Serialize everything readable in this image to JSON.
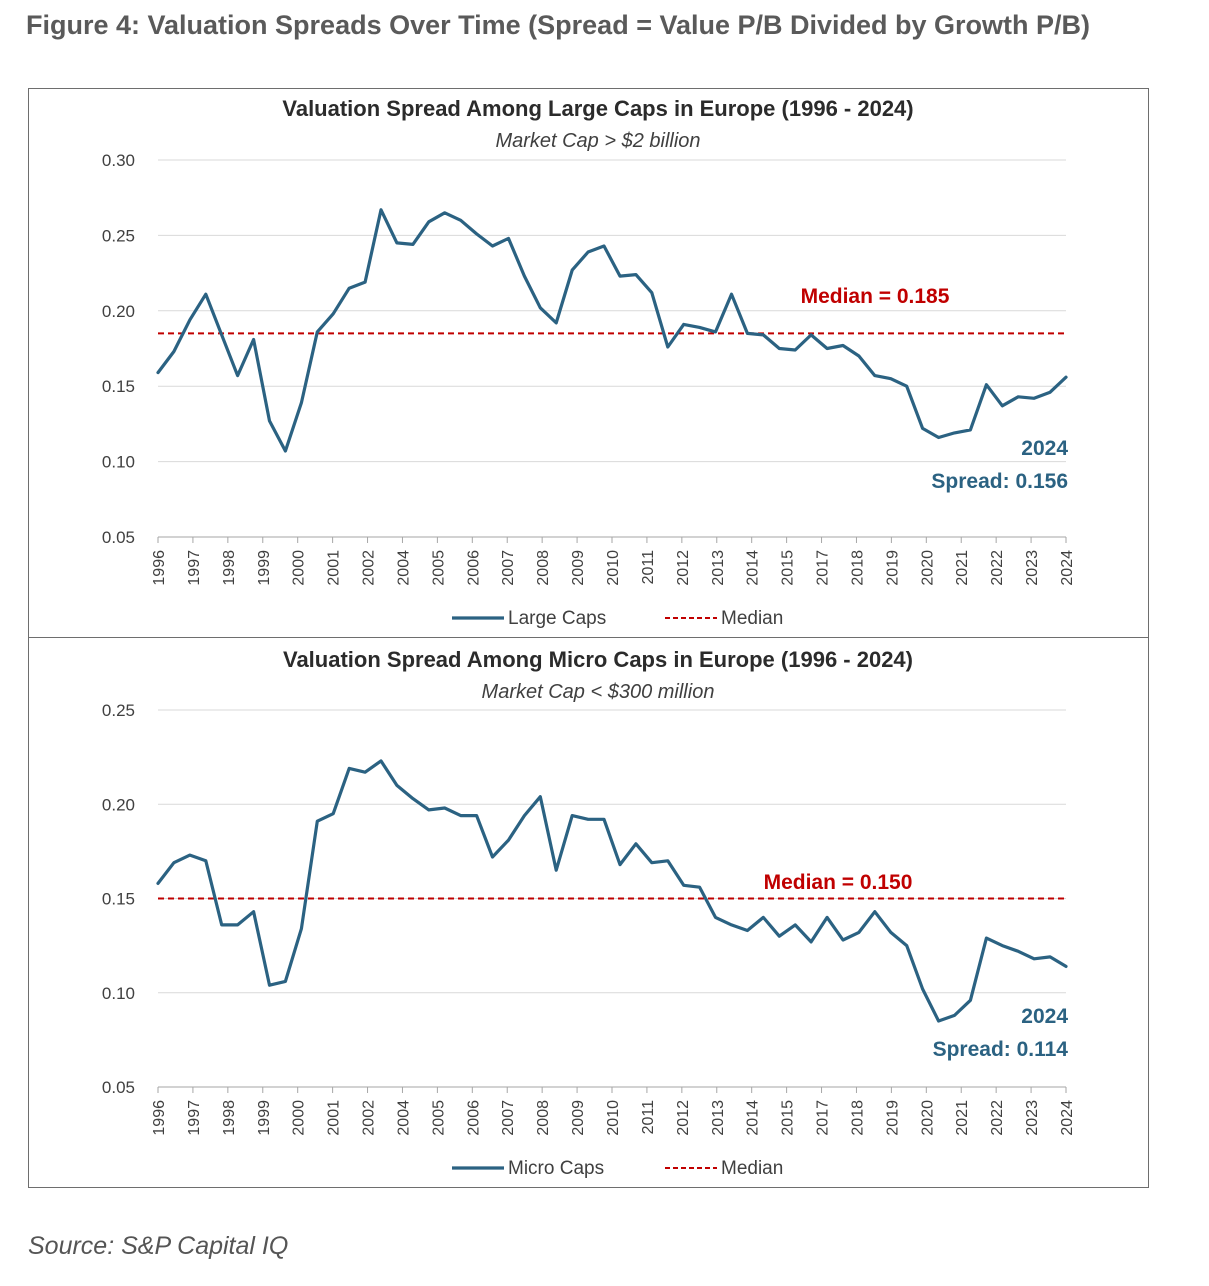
{
  "figure_title": "Figure 4: Valuation Spreads Over Time (Spread = Value P/B Divided by Growth P/B)",
  "source": "Source: S&P Capital IQ",
  "colors": {
    "line": "#2b6282",
    "median": "#c00000",
    "grid": "#d9d9d9",
    "text": "#404040"
  },
  "chart_data": [
    {
      "type": "line",
      "title": "Valuation Spread Among Large Caps in Europe (1996 - 2024)",
      "subtitle": "Market Cap > $2 billion",
      "ylim": [
        0.05,
        0.3
      ],
      "yticks": [
        0.05,
        0.1,
        0.15,
        0.2,
        0.25,
        0.3
      ],
      "ytick_labels": [
        "0.05",
        "0.10",
        "0.15",
        "0.20",
        "0.25",
        "0.30"
      ],
      "xtick_labels": [
        "1996",
        "1997",
        "1998",
        "1999",
        "2000",
        "2001",
        "2002",
        "2004",
        "2005",
        "2006",
        "2007",
        "2008",
        "2009",
        "2010",
        "2011",
        "2012",
        "2013",
        "2014",
        "2015",
        "2017",
        "2018",
        "2019",
        "2020",
        "2021",
        "2022",
        "2023",
        "2024"
      ],
      "legend": [
        "Large Caps",
        "Median"
      ],
      "median": 0.185,
      "median_label": "Median = 0.185",
      "annotation_year": "2024",
      "annotation_spread": "Spread: 0.156",
      "series": [
        {
          "name": "Large Caps",
          "values": [
            0.159,
            0.173,
            0.194,
            0.211,
            0.184,
            0.157,
            0.181,
            0.127,
            0.107,
            0.139,
            0.186,
            0.198,
            0.215,
            0.219,
            0.267,
            0.245,
            0.244,
            0.259,
            0.265,
            0.26,
            0.251,
            0.243,
            0.248,
            0.223,
            0.202,
            0.192,
            0.227,
            0.239,
            0.243,
            0.223,
            0.224,
            0.212,
            0.176,
            0.191,
            0.189,
            0.186,
            0.211,
            0.185,
            0.184,
            0.175,
            0.174,
            0.184,
            0.175,
            0.177,
            0.17,
            0.157,
            0.155,
            0.15,
            0.122,
            0.116,
            0.119,
            0.121,
            0.151,
            0.137,
            0.143,
            0.142,
            0.146,
            0.156
          ]
        }
      ]
    },
    {
      "type": "line",
      "title": "Valuation Spread Among Micro Caps in Europe (1996 - 2024)",
      "subtitle": "Market Cap < $300 million",
      "ylim": [
        0.05,
        0.25
      ],
      "yticks": [
        0.05,
        0.1,
        0.15,
        0.2,
        0.25
      ],
      "ytick_labels": [
        "0.05",
        "0.10",
        "0.15",
        "0.20",
        "0.25"
      ],
      "xtick_labels": [
        "1996",
        "1997",
        "1998",
        "1999",
        "2000",
        "2001",
        "2002",
        "2004",
        "2005",
        "2006",
        "2007",
        "2008",
        "2009",
        "2010",
        "2011",
        "2012",
        "2013",
        "2014",
        "2015",
        "2017",
        "2018",
        "2019",
        "2020",
        "2021",
        "2022",
        "2023",
        "2024"
      ],
      "legend": [
        "Micro Caps",
        "Median"
      ],
      "median": 0.15,
      "median_label": "Median = 0.150",
      "annotation_year": "2024",
      "annotation_spread": "Spread: 0.114",
      "series": [
        {
          "name": "Micro Caps",
          "values": [
            0.158,
            0.169,
            0.173,
            0.17,
            0.136,
            0.136,
            0.143,
            0.104,
            0.106,
            0.134,
            0.191,
            0.195,
            0.219,
            0.217,
            0.223,
            0.21,
            0.203,
            0.197,
            0.198,
            0.194,
            0.194,
            0.172,
            0.181,
            0.194,
            0.204,
            0.165,
            0.194,
            0.192,
            0.192,
            0.168,
            0.179,
            0.169,
            0.17,
            0.157,
            0.156,
            0.14,
            0.136,
            0.133,
            0.14,
            0.13,
            0.136,
            0.127,
            0.14,
            0.128,
            0.132,
            0.143,
            0.132,
            0.125,
            0.102,
            0.085,
            0.088,
            0.096,
            0.129,
            0.125,
            0.122,
            0.118,
            0.119,
            0.114
          ]
        }
      ]
    }
  ]
}
